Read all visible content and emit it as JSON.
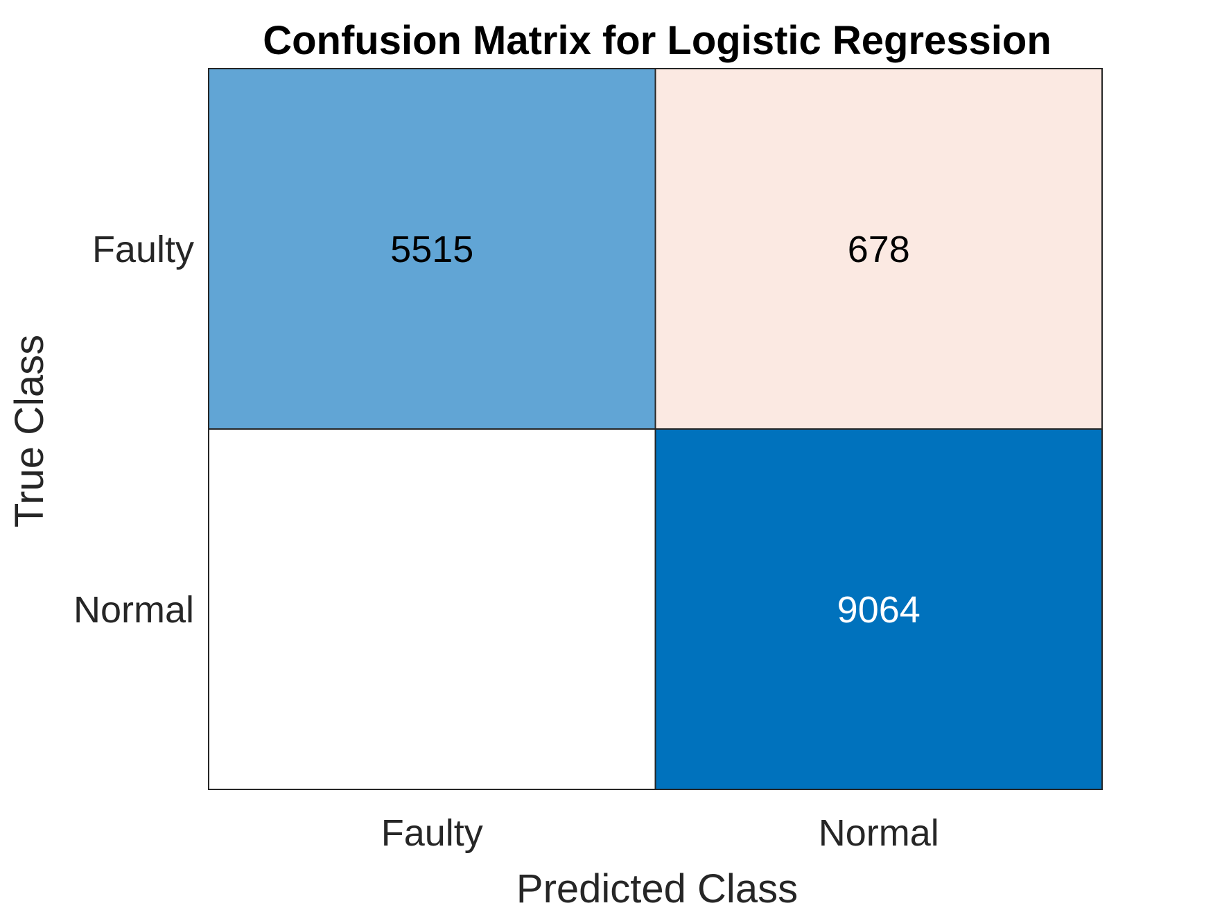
{
  "chart_data": {
    "type": "heatmap",
    "title": "Confusion Matrix for Logistic Regression",
    "xlabel": "Predicted Class",
    "ylabel": "True Class",
    "x_categories": [
      "Faulty",
      "Normal"
    ],
    "y_categories": [
      "Faulty",
      "Normal"
    ],
    "cells": [
      {
        "true_class": "Faulty",
        "predicted_class": "Faulty",
        "value": 5515,
        "label": "5515",
        "fill": "#61a5d5",
        "text_color": "#000000"
      },
      {
        "true_class": "Faulty",
        "predicted_class": "Normal",
        "value": 678,
        "label": "678",
        "fill": "#fbe9e2",
        "text_color": "#000000"
      },
      {
        "true_class": "Normal",
        "predicted_class": "Faulty",
        "value": null,
        "label": "",
        "fill": "#ffffff",
        "text_color": "#000000"
      },
      {
        "true_class": "Normal",
        "predicted_class": "Normal",
        "value": 9064,
        "label": "9064",
        "fill": "#0072bd",
        "text_color": "#ffffff"
      }
    ],
    "border_color": "#262626",
    "grid": false
  }
}
